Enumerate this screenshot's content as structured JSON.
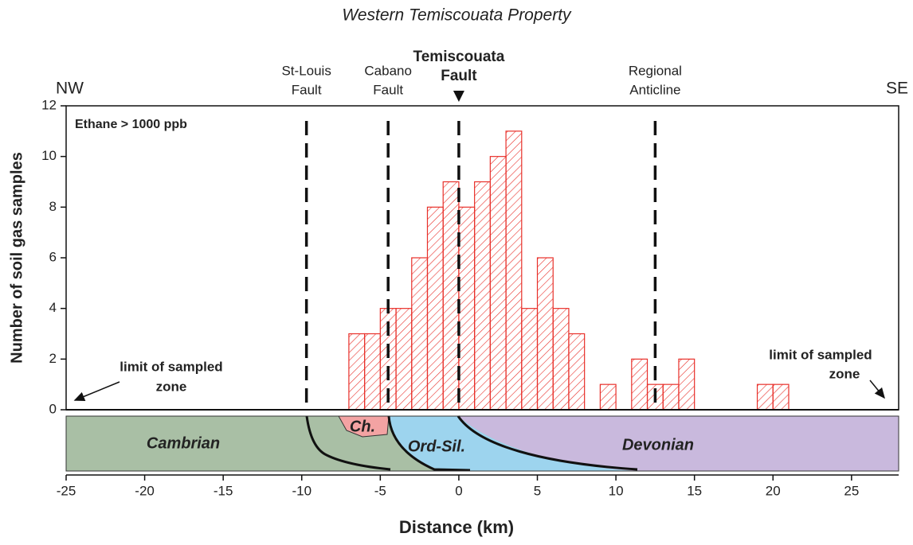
{
  "chart_data": {
    "type": "histogram",
    "title": "Western Temiscouata Property",
    "xlabel": "Distance (km)",
    "ylabel": "Number of soil gas samples",
    "annotation": "Ethane > 1000 ppb",
    "direction_left": "NW",
    "direction_right": "SE",
    "limit_left": [
      "limit of sampled",
      "zone"
    ],
    "limit_right": [
      "limit of sampled",
      "zone"
    ],
    "bins": [
      -7,
      -6,
      -5,
      -4,
      -3,
      -2,
      -1,
      0,
      1,
      2,
      3,
      4,
      5,
      6,
      7,
      8,
      9,
      10,
      11,
      12,
      13,
      14,
      15,
      16,
      17,
      18,
      19,
      20,
      21
    ],
    "values": [
      3,
      3,
      4,
      4,
      6,
      8,
      9,
      8,
      9,
      10,
      11,
      4,
      6,
      4,
      3,
      0,
      1,
      0,
      2,
      1,
      1,
      2,
      0,
      0,
      0,
      0,
      1,
      1
    ],
    "color": "#e8302a",
    "faults": [
      {
        "lines": [
          "St-Louis",
          "Fault"
        ],
        "x": -9.7,
        "bold": false,
        "arrow": false
      },
      {
        "lines": [
          "Cabano",
          "Fault"
        ],
        "x": -4.5,
        "bold": false,
        "arrow": false
      },
      {
        "lines": [
          "Temiscouata",
          "Fault"
        ],
        "x": 0,
        "bold": true,
        "arrow": true
      },
      {
        "lines": [
          "Regional",
          "Anticline"
        ],
        "x": 12.5,
        "bold": false,
        "arrow": false
      }
    ],
    "geology": [
      "Cambrian",
      "Ch.",
      "Ord-Sil.",
      "Devonian"
    ],
    "xlim": [
      -25,
      28
    ],
    "xticks": [
      -25,
      -20,
      -15,
      -10,
      -5,
      0,
      5,
      10,
      15,
      20,
      25
    ],
    "ylim": [
      0,
      12
    ],
    "yticks": [
      0,
      2,
      4,
      6,
      8,
      10,
      12
    ]
  }
}
